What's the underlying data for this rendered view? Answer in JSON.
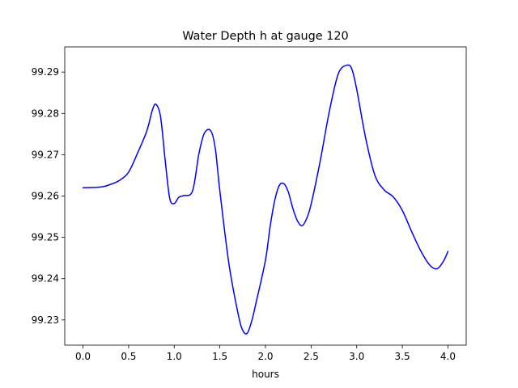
{
  "chart_data": {
    "type": "line",
    "title": "Water Depth h at gauge 120",
    "xlabel": "hours",
    "ylabel": "",
    "xlim": [
      -0.2,
      4.2
    ],
    "ylim": [
      99.2239,
      99.2961
    ],
    "x_ticks": [
      0.0,
      0.5,
      1.0,
      1.5,
      2.0,
      2.5,
      3.0,
      3.5,
      4.0
    ],
    "x_tick_labels": [
      "0.0",
      "0.5",
      "1.0",
      "1.5",
      "2.0",
      "2.5",
      "3.0",
      "3.5",
      "4.0"
    ],
    "y_ticks": [
      99.23,
      99.24,
      99.25,
      99.26,
      99.27,
      99.28,
      99.29
    ],
    "y_tick_labels": [
      "99.23",
      "99.24",
      "99.25",
      "99.26",
      "99.27",
      "99.28",
      "99.29"
    ],
    "grid": false,
    "series": [
      {
        "color": "#0000ff",
        "x": [
          0.0,
          0.2,
          0.3,
          0.4,
          0.5,
          0.6,
          0.7,
          0.76,
          0.8,
          0.85,
          0.9,
          0.95,
          1.0,
          1.05,
          1.1,
          1.2,
          1.27,
          1.33,
          1.4,
          1.45,
          1.5,
          1.6,
          1.7,
          1.75,
          1.8,
          1.85,
          1.9,
          2.0,
          2.05,
          2.1,
          2.15,
          2.2,
          2.25,
          2.3,
          2.35,
          2.4,
          2.45,
          2.5,
          2.6,
          2.7,
          2.8,
          2.9,
          2.95,
          3.0,
          3.1,
          3.2,
          3.3,
          3.4,
          3.5,
          3.6,
          3.7,
          3.8,
          3.88,
          3.95,
          4.0
        ],
        "y": [
          99.262,
          99.2622,
          99.2628,
          99.2638,
          99.2658,
          99.2705,
          99.2758,
          99.2808,
          99.2822,
          99.2792,
          99.2688,
          99.2595,
          99.2582,
          99.2597,
          99.2601,
          99.2612,
          99.2702,
          99.2752,
          99.2758,
          99.2715,
          99.2612,
          99.2435,
          99.2315,
          99.2275,
          99.2268,
          99.2298,
          99.2345,
          99.2445,
          99.2525,
          99.2588,
          99.2625,
          99.263,
          99.261,
          99.257,
          99.254,
          99.2528,
          99.2545,
          99.258,
          99.2685,
          99.2805,
          99.2897,
          99.2917,
          99.2905,
          99.2858,
          99.2738,
          99.265,
          99.2615,
          99.2598,
          99.2565,
          99.2515,
          99.2468,
          99.2433,
          99.2424,
          99.2442,
          99.2466
        ]
      }
    ]
  }
}
